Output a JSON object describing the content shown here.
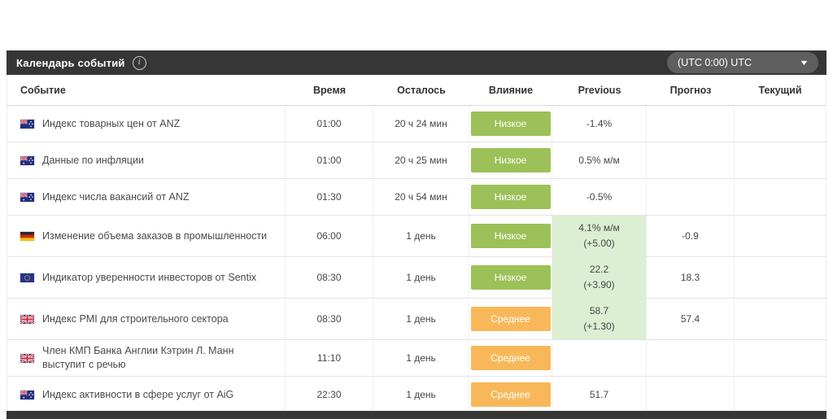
{
  "panel": {
    "title": "Календарь событий",
    "info_icon": "info-icon",
    "timezone_selector": {
      "value": "(UTC 0:00) UTC",
      "caret_icon": "chevron-down-icon"
    }
  },
  "table": {
    "columns": [
      "Событие",
      "Время",
      "Осталось",
      "Влияние",
      "Previous",
      "Прогноз",
      "Текущий"
    ],
    "column_keys": [
      "event",
      "time",
      "remaining",
      "impact",
      "previous",
      "forecast",
      "actual"
    ],
    "rows": [
      {
        "flag": "nz",
        "flag_icon": "flag-new-zealand-icon",
        "event": "Индекс товарных цен от ANZ",
        "time": "01:00",
        "remaining": "20 ч 24 мин",
        "impact": "Низкое",
        "impact_level": "low",
        "previous": "-1.4%",
        "previous_sub": "",
        "previous_highlight": false,
        "forecast": "",
        "actual": ""
      },
      {
        "flag": "au",
        "flag_icon": "flag-australia-icon",
        "event": "Данные по инфляции",
        "time": "01:00",
        "remaining": "20 ч 25 мин",
        "impact": "Низкое",
        "impact_level": "low",
        "previous": "0.5% м/м",
        "previous_sub": "",
        "previous_highlight": false,
        "forecast": "",
        "actual": ""
      },
      {
        "flag": "au",
        "flag_icon": "flag-australia-icon",
        "event": "Индекс числа вакансий от ANZ",
        "time": "01:30",
        "remaining": "20 ч 54 мин",
        "impact": "Низкое",
        "impact_level": "low",
        "previous": "-0.5%",
        "previous_sub": "",
        "previous_highlight": false,
        "forecast": "",
        "actual": ""
      },
      {
        "flag": "de",
        "flag_icon": "flag-germany-icon",
        "event": "Изменение объема заказов в промышленности",
        "time": "06:00",
        "remaining": "1 день",
        "impact": "Низкое",
        "impact_level": "low",
        "previous": "4.1% м/м",
        "previous_sub": "(+5.00)",
        "previous_highlight": true,
        "forecast": "-0.9",
        "actual": ""
      },
      {
        "flag": "eu",
        "flag_icon": "flag-european-union-icon",
        "event": "Индикатор уверенности инвесторов от Sentix",
        "time": "08:30",
        "remaining": "1 день",
        "impact": "Низкое",
        "impact_level": "low",
        "previous": "22.2",
        "previous_sub": "(+3.90)",
        "previous_highlight": true,
        "forecast": "18.3",
        "actual": ""
      },
      {
        "flag": "gb",
        "flag_icon": "flag-united-kingdom-icon",
        "event": "Индекс PMI для строительного сектора",
        "time": "08:30",
        "remaining": "1 день",
        "impact": "Среднее",
        "impact_level": "medium",
        "previous": "58.7",
        "previous_sub": "(+1.30)",
        "previous_highlight": true,
        "forecast": "57.4",
        "actual": ""
      },
      {
        "flag": "gb",
        "flag_icon": "flag-united-kingdom-icon",
        "event": "Член КМП Банка Англии Кэтрин Л. Манн выступит с речью",
        "time": "11:10",
        "remaining": "1 день",
        "impact": "Среднее",
        "impact_level": "medium",
        "previous": "",
        "previous_sub": "",
        "previous_highlight": false,
        "forecast": "",
        "actual": ""
      },
      {
        "flag": "au",
        "flag_icon": "flag-australia-icon",
        "event": "Индекс активности в сфере услуг от AiG",
        "time": "22:30",
        "remaining": "1 день",
        "impact": "Среднее",
        "impact_level": "medium",
        "previous": "51.7",
        "previous_sub": "",
        "previous_highlight": false,
        "forecast": "",
        "actual": ""
      }
    ]
  },
  "colors": {
    "impact_low": "#9cc158",
    "impact_medium": "#f8b859",
    "previous_highlight": "#dcefd2",
    "header_bar": "#363636",
    "dropdown": "#5e5e5e"
  }
}
